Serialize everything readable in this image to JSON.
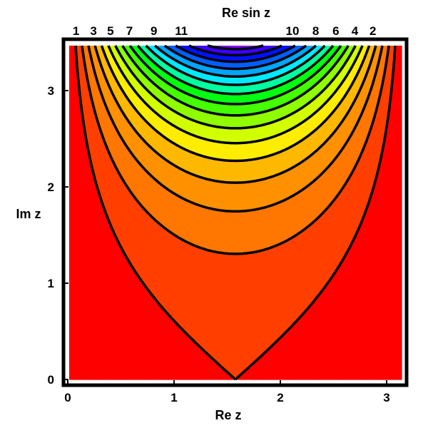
{
  "chart_data": {
    "type": "contour",
    "title": "Re sin z",
    "xlabel": "Re z",
    "ylabel": "Im z",
    "xlim": [
      0,
      3.14159
    ],
    "ylim": [
      0,
      3.5
    ],
    "x_ticks": [
      0,
      1,
      2,
      3
    ],
    "y_ticks": [
      0,
      1,
      2,
      3
    ],
    "function": "Re(sin z) = sin(x) * cosh(y)",
    "contour_levels": [
      1,
      2,
      3,
      4,
      5,
      6,
      7,
      8,
      9,
      10,
      11,
      12,
      13,
      14,
      15,
      16
    ],
    "contour_labels": [
      {
        "text": "1",
        "x": 0.065
      },
      {
        "text": "3",
        "x": 0.23
      },
      {
        "text": "5",
        "x": 0.39
      },
      {
        "text": "7",
        "x": 0.57
      },
      {
        "text": "9",
        "x": 0.8
      },
      {
        "text": "11",
        "x": 1.06
      },
      {
        "text": "10",
        "x": 2.11
      },
      {
        "text": "8",
        "x": 2.33
      },
      {
        "text": "6",
        "x": 2.52
      },
      {
        "text": "4",
        "x": 2.7
      },
      {
        "text": "2",
        "x": 2.87
      }
    ],
    "colormap": [
      "#ff0000",
      "#ff7000",
      "#ffa000",
      "#ffff00",
      "#88ff00",
      "#00ff00",
      "#00ffff",
      "#0088ff",
      "#0000ff",
      "#8800ff"
    ],
    "grid": false
  }
}
